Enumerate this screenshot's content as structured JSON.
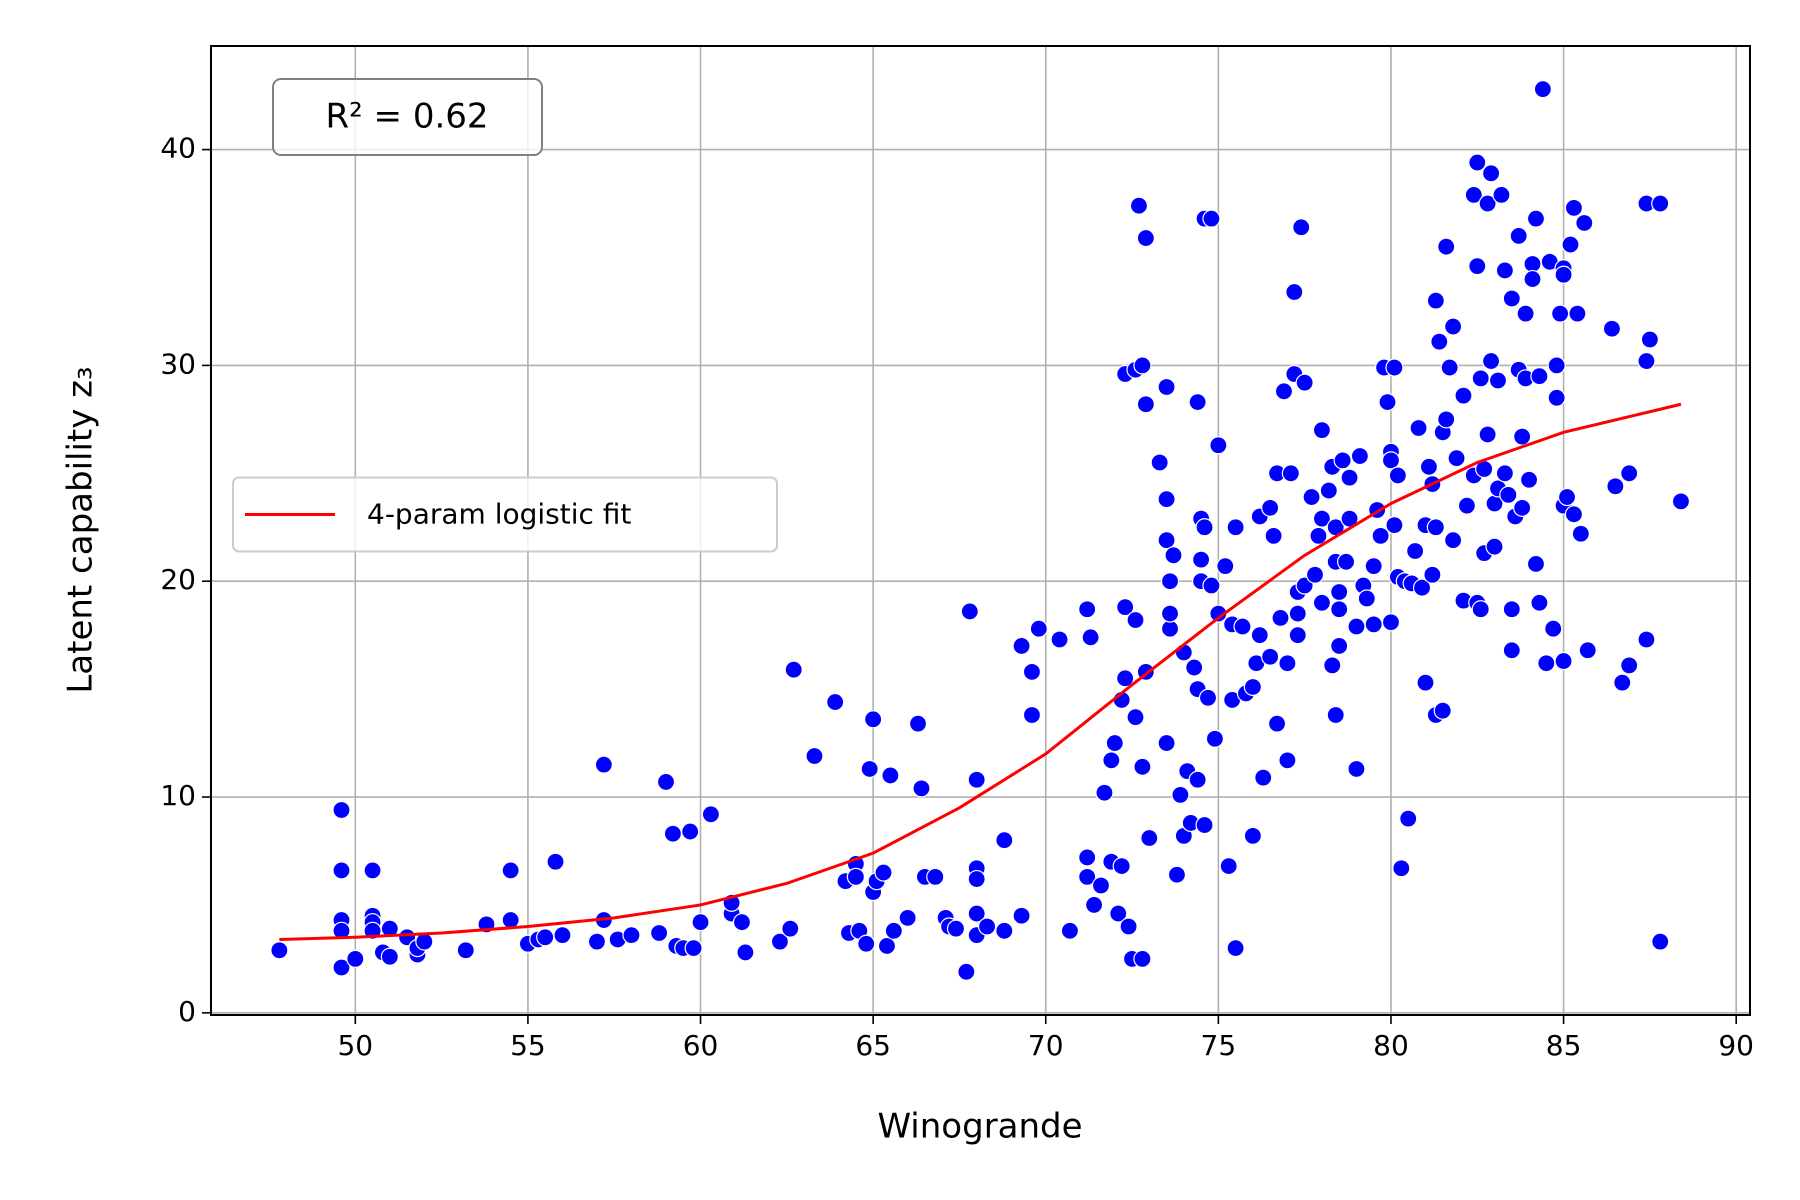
{
  "chart_data": {
    "type": "scatter",
    "xlabel": "Winogrande",
    "ylabel": "Latent capability z₃",
    "annotation": "R² = 0.62",
    "xlim": [
      45.82,
      90.4
    ],
    "ylim": [
      -0.1,
      44.8
    ],
    "xticks": [
      50,
      55,
      60,
      65,
      70,
      75,
      80,
      85,
      90
    ],
    "yticks": [
      0,
      10,
      20,
      30,
      40
    ],
    "grid": true,
    "legend": "center left",
    "series": [
      {
        "kind": "scatter",
        "color": "#0000ff",
        "x": [
          47.8,
          49.6,
          49.6,
          49.6,
          49.6,
          49.6,
          50,
          50.5,
          50.5,
          50.5,
          50.5,
          50.8,
          51,
          51,
          51.5,
          51.8,
          51.8,
          52,
          53.2,
          53.8,
          54.5,
          54.5,
          55,
          55.3,
          55.5,
          55.8,
          56,
          57,
          57.2,
          57.2,
          57.6,
          58,
          58.8,
          59,
          59.2,
          59.3,
          59.5,
          59.7,
          59.8,
          60,
          60.3,
          60.9,
          60.9,
          61.2,
          61.3,
          62.3,
          62.6,
          62.7,
          63.3,
          63.9,
          64.2,
          64.3,
          64.5,
          64.5,
          64.6,
          64.8,
          64.9,
          65,
          65,
          65.1,
          65.3,
          65.4,
          65.5,
          65.6,
          66,
          66.3,
          66.4,
          66.5,
          66.8,
          67.1,
          67.2,
          67.4,
          67.7,
          67.8,
          68,
          68,
          68,
          68,
          68,
          68.3,
          68.8,
          68.8,
          69.3,
          69.3,
          69.6,
          69.6,
          69.8,
          70.4,
          70.7,
          71.2,
          71.2,
          71.2,
          71.3,
          71.4,
          71.6,
          71.7,
          71.9,
          71.9,
          72,
          72.1,
          72.2,
          72.2,
          72.3,
          72.3,
          72.3,
          72.4,
          72.5,
          72.6,
          72.6,
          72.6,
          72.7,
          72.8,
          72.8,
          72.8,
          72.9,
          72.9,
          72.9,
          73,
          73.3,
          73.5,
          73.5,
          73.5,
          73.5,
          73.6,
          73.6,
          73.6,
          73.7,
          73.8,
          73.9,
          74,
          74,
          74.1,
          74.2,
          74.3,
          74.4,
          74.4,
          74.4,
          74.5,
          74.5,
          74.5,
          74.6,
          74.6,
          74.6,
          74.7,
          74.8,
          74.8,
          74.9,
          75,
          75,
          75.2,
          75.3,
          75.4,
          75.4,
          75.5,
          75.5,
          75.7,
          75.8,
          76,
          76,
          76.1,
          76.2,
          76.2,
          76.3,
          76.5,
          76.5,
          76.6,
          76.7,
          76.7,
          76.8,
          76.9,
          77,
          77,
          77.1,
          77.2,
          77.2,
          77.3,
          77.3,
          77.3,
          77.4,
          77.5,
          77.5,
          77.7,
          77.8,
          77.9,
          78,
          78,
          78,
          78.2,
          78.3,
          78.3,
          78.4,
          78.4,
          78.4,
          78.5,
          78.5,
          78.5,
          78.6,
          78.7,
          78.8,
          78.8,
          79,
          79,
          79.1,
          79.2,
          79.3,
          79.5,
          79.5,
          79.6,
          79.7,
          79.8,
          79.9,
          80,
          80,
          80,
          80.1,
          80.1,
          80.2,
          80.2,
          80.3,
          80.4,
          80.5,
          80.6,
          80.7,
          80.8,
          80.9,
          81,
          81,
          81.1,
          81.2,
          81.2,
          81.3,
          81.3,
          81.3,
          81.4,
          81.5,
          81.5,
          81.6,
          81.6,
          81.7,
          81.8,
          81.8,
          81.9,
          82.1,
          82.1,
          82.2,
          82.4,
          82.4,
          82.5,
          82.5,
          82.5,
          82.6,
          82.6,
          82.7,
          82.7,
          82.8,
          82.8,
          82.9,
          82.9,
          83,
          83,
          83.1,
          83.1,
          83.2,
          83.3,
          83.3,
          83.4,
          83.5,
          83.5,
          83.5,
          83.6,
          83.7,
          83.7,
          83.8,
          83.8,
          83.9,
          83.9,
          84,
          84.1,
          84.1,
          84.2,
          84.2,
          84.3,
          84.3,
          84.4,
          84.5,
          84.6,
          84.7,
          84.8,
          84.8,
          84.9,
          85,
          85,
          85,
          85,
          85.1,
          85.2,
          85.3,
          85.3,
          85.4,
          85.5,
          85.6,
          85.7,
          86.4,
          86.5,
          86.7,
          86.9,
          86.9,
          87.4,
          87.4,
          87.4,
          87.5,
          87.8,
          87.8,
          88.4
        ],
        "values": [
          2.9,
          9.4,
          6.6,
          4.3,
          3.8,
          2.1,
          2.5,
          6.6,
          4.5,
          4.2,
          3.8,
          2.8,
          2.6,
          3.9,
          3.5,
          2.7,
          3,
          3.3,
          2.9,
          4.1,
          6.6,
          4.3,
          3.2,
          3.4,
          3.5,
          7,
          3.6,
          3.3,
          11.5,
          4.3,
          3.4,
          3.6,
          3.7,
          10.7,
          8.3,
          3.1,
          3,
          8.4,
          3,
          4.2,
          9.2,
          4.6,
          5.1,
          4.2,
          2.8,
          3.3,
          3.9,
          15.9,
          11.9,
          14.4,
          6.1,
          3.7,
          6.9,
          6.3,
          3.8,
          3.2,
          11.3,
          13.6,
          5.6,
          6.1,
          6.5,
          3.1,
          11,
          3.8,
          4.4,
          13.4,
          10.4,
          6.3,
          6.3,
          4.4,
          4,
          3.9,
          1.9,
          18.6,
          10.8,
          6.7,
          6.2,
          4.6,
          3.6,
          4,
          8,
          3.8,
          4.5,
          17,
          15.8,
          13.8,
          17.8,
          17.3,
          3.8,
          18.7,
          7.2,
          6.3,
          17.4,
          5,
          5.9,
          10.2,
          11.7,
          7,
          12.5,
          4.6,
          6.8,
          14.5,
          15.5,
          18.8,
          29.6,
          4,
          2.5,
          29.8,
          13.7,
          18.2,
          37.4,
          30,
          2.5,
          11.4,
          35.9,
          15.8,
          28.2,
          8.1,
          25.5,
          29,
          21.9,
          23.8,
          12.5,
          20,
          17.8,
          18.5,
          21.2,
          6.4,
          10.1,
          16.7,
          8.2,
          11.2,
          8.8,
          16,
          28.3,
          15,
          10.8,
          22.9,
          20,
          21,
          8.7,
          22.5,
          36.8,
          14.6,
          36.8,
          19.8,
          12.7,
          26.3,
          18.5,
          20.7,
          6.8,
          18,
          14.5,
          22.5,
          3,
          17.9,
          14.8,
          15.1,
          8.2,
          16.2,
          17.5,
          23,
          10.9,
          23.4,
          16.5,
          22.1,
          25,
          13.4,
          18.3,
          28.8,
          11.7,
          16.2,
          25,
          33.4,
          29.6,
          19.5,
          17.5,
          18.5,
          36.4,
          29.2,
          19.8,
          23.9,
          20.3,
          22.1,
          27,
          22.9,
          19,
          24.2,
          25.3,
          16.1,
          13.8,
          20.9,
          22.5,
          17,
          19.5,
          18.7,
          25.6,
          20.9,
          24.8,
          22.9,
          17.9,
          11.3,
          25.8,
          19.8,
          19.2,
          18,
          20.7,
          23.3,
          22.1,
          29.9,
          28.3,
          18.1,
          26,
          25.6,
          29.9,
          22.6,
          24.9,
          20.2,
          6.7,
          20,
          9,
          19.9,
          21.4,
          27.1,
          19.7,
          22.6,
          15.3,
          25.3,
          24.5,
          20.3,
          33,
          13.8,
          22.5,
          31.1,
          14,
          26.9,
          35.5,
          27.5,
          29.9,
          31.8,
          21.9,
          25.7,
          28.6,
          19.1,
          23.5,
          24.9,
          37.9,
          39.4,
          19,
          34.6,
          29.4,
          18.7,
          21.3,
          25.2,
          26.8,
          37.5,
          38.9,
          30.2,
          23.6,
          21.6,
          24.3,
          29.3,
          37.9,
          34.4,
          25,
          24,
          33.1,
          18.7,
          16.8,
          23,
          36,
          29.8,
          26.7,
          23.4,
          32.4,
          29.4,
          24.7,
          34.7,
          34,
          36.8,
          20.8,
          29.5,
          19,
          42.8,
          16.2,
          34.8,
          17.8,
          28.5,
          30,
          32.4,
          34.5,
          16.3,
          23.5,
          34.2,
          23.9,
          35.6,
          23.1,
          37.3,
          32.4,
          22.2,
          36.6,
          16.8,
          31.7,
          24.4,
          15.3,
          16.1,
          25,
          37.5,
          30.2,
          17.3,
          31.2,
          37.5,
          3.3,
          23.7
        ]
      },
      {
        "kind": "line",
        "name": "4-param logistic fit",
        "color": "#ff0000",
        "x": [
          47.8,
          50,
          52.5,
          55,
          57.5,
          60,
          62.5,
          65,
          67.5,
          70,
          72.5,
          75,
          77.5,
          80,
          82.5,
          85,
          88.4
        ],
        "values": [
          3.4,
          3.5,
          3.7,
          4.0,
          4.4,
          5.0,
          6.0,
          7.4,
          9.5,
          12.0,
          15.2,
          18.3,
          21.2,
          23.6,
          25.5,
          26.9,
          28.2
        ]
      }
    ]
  }
}
